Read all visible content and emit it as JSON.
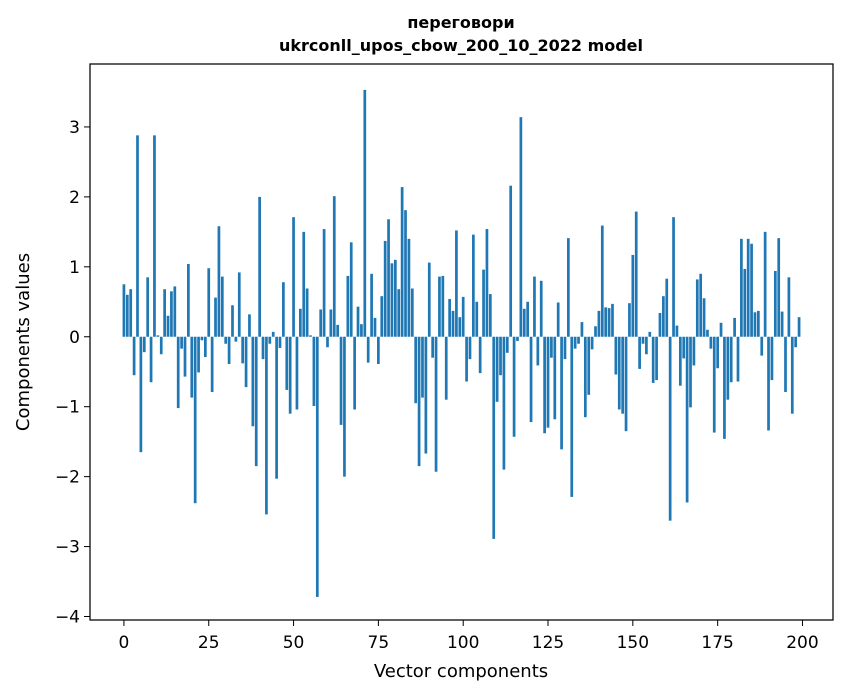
{
  "chart_data": {
    "type": "bar",
    "title": "переговори",
    "subtitle": "ukrconll_upos_cbow_200_10_2022 model",
    "xlabel": "Vector components",
    "ylabel": "Components values",
    "xlim": [
      -10,
      209
    ],
    "ylim": [
      -4.05,
      3.9
    ],
    "xticks": [
      0,
      25,
      50,
      75,
      100,
      125,
      150,
      175,
      200
    ],
    "xtick_labels": [
      "0",
      "25",
      "50",
      "75",
      "100",
      "125",
      "150",
      "175",
      "200"
    ],
    "yticks": [
      -4,
      -3,
      -2,
      -1,
      0,
      1,
      2,
      3
    ],
    "ytick_labels": [
      "−4",
      "−3",
      "−2",
      "−1",
      "0",
      "1",
      "2",
      "3"
    ],
    "bar_color": "#1f77b4",
    "grid": false,
    "x": [
      0,
      1,
      2,
      3,
      4,
      5,
      6,
      7,
      8,
      9,
      10,
      11,
      12,
      13,
      14,
      15,
      16,
      17,
      18,
      19,
      20,
      21,
      22,
      23,
      24,
      25,
      26,
      27,
      28,
      29,
      30,
      31,
      32,
      33,
      34,
      35,
      36,
      37,
      38,
      39,
      40,
      41,
      42,
      43,
      44,
      45,
      46,
      47,
      48,
      49,
      50,
      51,
      52,
      53,
      54,
      55,
      56,
      57,
      58,
      59,
      60,
      61,
      62,
      63,
      64,
      65,
      66,
      67,
      68,
      69,
      70,
      71,
      72,
      73,
      74,
      75,
      76,
      77,
      78,
      79,
      80,
      81,
      82,
      83,
      84,
      85,
      86,
      87,
      88,
      89,
      90,
      91,
      92,
      93,
      94,
      95,
      96,
      97,
      98,
      99,
      100,
      101,
      102,
      103,
      104,
      105,
      106,
      107,
      108,
      109,
      110,
      111,
      112,
      113,
      114,
      115,
      116,
      117,
      118,
      119,
      120,
      121,
      122,
      123,
      124,
      125,
      126,
      127,
      128,
      129,
      130,
      131,
      132,
      133,
      134,
      135,
      136,
      137,
      138,
      139,
      140,
      141,
      142,
      143,
      144,
      145,
      146,
      147,
      148,
      149,
      150,
      151,
      152,
      153,
      154,
      155,
      156,
      157,
      158,
      159,
      160,
      161,
      162,
      163,
      164,
      165,
      166,
      167,
      168,
      169,
      170,
      171,
      172,
      173,
      174,
      175,
      176,
      177,
      178,
      179,
      180,
      181,
      182,
      183,
      184,
      185,
      186,
      187,
      188,
      189,
      190,
      191,
      192,
      193,
      194,
      195,
      196,
      197,
      198,
      199
    ],
    "values": [
      0.75,
      0.6,
      0.68,
      -0.55,
      2.88,
      -1.65,
      -0.22,
      0.85,
      -0.65,
      2.88,
      0.02,
      -0.25,
      0.68,
      0.3,
      0.65,
      0.72,
      -1.02,
      -0.17,
      -0.57,
      1.04,
      -0.87,
      -2.38,
      -0.51,
      -0.05,
      -0.29,
      0.98,
      -0.79,
      0.56,
      1.58,
      0.86,
      -0.1,
      -0.39,
      0.45,
      -0.07,
      0.92,
      -0.38,
      -0.72,
      0.32,
      -1.28,
      -1.85,
      2.0,
      -0.32,
      -2.54,
      -0.1,
      0.07,
      -2.03,
      -0.16,
      0.78,
      -0.76,
      -1.1,
      1.71,
      -1.04,
      0.4,
      1.5,
      0.69,
      0.02,
      -0.99,
      -3.72,
      0.39,
      1.54,
      -0.15,
      0.39,
      2.01,
      0.17,
      -1.26,
      -2.0,
      0.87,
      1.35,
      -1.04,
      0.43,
      0.18,
      3.53,
      -0.37,
      0.9,
      0.27,
      -0.39,
      0.58,
      1.37,
      1.68,
      1.05,
      1.1,
      0.68,
      2.14,
      1.81,
      1.4,
      0.69,
      -0.95,
      -1.85,
      -0.87,
      -1.67,
      1.06,
      -0.3,
      -1.93,
      0.86,
      0.87,
      -0.9,
      0.54,
      0.37,
      1.52,
      0.28,
      0.57,
      -0.64,
      -0.32,
      1.46,
      0.5,
      -0.52,
      0.96,
      1.54,
      0.61,
      -2.89,
      -0.93,
      -0.55,
      -1.9,
      -0.23,
      2.16,
      -1.43,
      -0.06,
      3.14,
      0.4,
      0.5,
      -1.22,
      0.86,
      -0.41,
      0.8,
      -1.38,
      -1.3,
      -0.3,
      -1.18,
      0.49,
      -1.61,
      -0.32,
      1.41,
      -2.29,
      -0.17,
      -0.1,
      0.21,
      -1.15,
      -0.83,
      -0.18,
      0.15,
      0.37,
      1.59,
      0.42,
      0.41,
      0.47,
      -0.54,
      -1.04,
      -1.1,
      -1.35,
      0.48,
      1.17,
      1.79,
      -0.46,
      -0.1,
      -0.25,
      0.07,
      -0.66,
      -0.62,
      0.34,
      0.58,
      0.83,
      -2.63,
      1.71,
      0.16,
      -0.7,
      -0.31,
      -2.37,
      -1.01,
      -0.41,
      0.82,
      0.9,
      0.55,
      0.1,
      -0.17,
      -1.37,
      -0.45,
      0.2,
      -1.46,
      -0.9,
      -0.65,
      0.27,
      -0.64,
      1.4,
      0.97,
      1.4,
      1.33,
      0.35,
      0.37,
      -0.27,
      1.5,
      -1.34,
      -0.62,
      0.94,
      1.41,
      0.36,
      -0.79,
      0.85,
      -1.1,
      -0.15,
      0.28
    ]
  }
}
